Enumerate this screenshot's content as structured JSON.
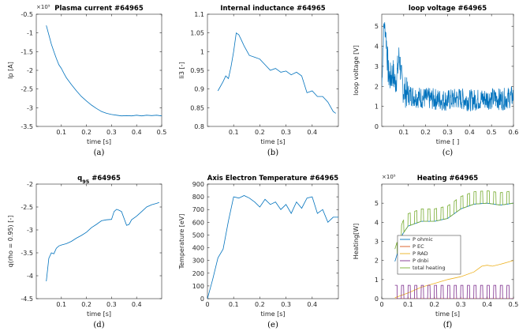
{
  "chart_data": [
    {
      "type": "line",
      "title": "Plasma current #64965",
      "xlabel": "time [s]",
      "ylabel": "Ip [A]",
      "xlim": [
        0,
        0.5
      ],
      "ylim": [
        -3.5,
        -0.5
      ],
      "xticks": [
        0.1,
        0.2,
        0.3,
        0.4,
        0.5
      ],
      "xticklabels": [
        "0.1",
        "0.2",
        "0.3",
        "0.4",
        "0.5"
      ],
      "yticks": [
        -3.5,
        -3,
        -2.5,
        -2,
        -1.5,
        -1,
        -0.5
      ],
      "yticklabels": [
        "-3.5",
        "-3",
        "-2.5",
        "-2",
        "-1.5",
        "-1",
        "-0.5"
      ],
      "exponent": "×10⁵",
      "caption": "(a)",
      "series": [
        {
          "color": "#0072bd",
          "x": [
            0.04,
            0.05,
            0.06,
            0.07,
            0.08,
            0.09,
            0.1,
            0.11,
            0.12,
            0.14,
            0.16,
            0.18,
            0.2,
            0.22,
            0.24,
            0.26,
            0.28,
            0.3,
            0.32,
            0.34,
            0.36,
            0.38,
            0.4,
            0.42,
            0.44,
            0.46,
            0.48,
            0.5
          ],
          "y": [
            -0.8,
            -1.05,
            -1.3,
            -1.5,
            -1.68,
            -1.85,
            -1.95,
            -2.08,
            -2.2,
            -2.38,
            -2.55,
            -2.7,
            -2.82,
            -2.93,
            -3.02,
            -3.1,
            -3.15,
            -3.18,
            -3.2,
            -3.22,
            -3.21,
            -3.22,
            -3.2,
            -3.22,
            -3.2,
            -3.21,
            -3.2,
            -3.22
          ]
        }
      ]
    },
    {
      "type": "line",
      "title": "Internal inductance #64965",
      "xlabel": "time [s]",
      "ylabel": "li3 [-]",
      "xlim": [
        0,
        0.5
      ],
      "ylim": [
        0.8,
        1.1
      ],
      "xticks": [
        0.1,
        0.2,
        0.3,
        0.4
      ],
      "xticklabels": [
        "0.1",
        "0.2",
        "0.3",
        "0.4"
      ],
      "yticks": [
        0.8,
        0.85,
        0.9,
        0.95,
        1,
        1.05,
        1.1
      ],
      "yticklabels": [
        "0.8",
        "0.85",
        "0.9",
        "0.95",
        "1",
        "1.05",
        "1.1"
      ],
      "caption": "(b)",
      "series": [
        {
          "color": "#0072bd",
          "x": [
            0.04,
            0.06,
            0.07,
            0.08,
            0.09,
            0.1,
            0.11,
            0.12,
            0.13,
            0.14,
            0.16,
            0.18,
            0.2,
            0.22,
            0.24,
            0.26,
            0.28,
            0.3,
            0.32,
            0.34,
            0.36,
            0.38,
            0.4,
            0.42,
            0.44,
            0.46,
            0.48,
            0.49
          ],
          "y": [
            0.895,
            0.92,
            0.935,
            0.928,
            0.96,
            1.0,
            1.05,
            1.045,
            1.03,
            1.015,
            0.99,
            0.985,
            0.98,
            0.965,
            0.95,
            0.955,
            0.945,
            0.948,
            0.938,
            0.945,
            0.935,
            0.89,
            0.895,
            0.88,
            0.88,
            0.865,
            0.84,
            0.835
          ]
        }
      ]
    },
    {
      "type": "line",
      "title": "loop voltage #64965",
      "xlabel": "time [ ]",
      "ylabel": "loop voltage [V]",
      "xlim": [
        0,
        0.6
      ],
      "ylim": [
        0,
        5.6
      ],
      "xticks": [
        0.1,
        0.2,
        0.3,
        0.4,
        0.5,
        0.6
      ],
      "xticklabels": [
        "0.1",
        "0.2",
        "0.3",
        "0.4",
        "0.5",
        "0.6"
      ],
      "yticks": [
        0,
        1,
        2,
        3,
        4,
        5
      ],
      "yticklabels": [
        "0",
        "1",
        "2",
        "3",
        "4",
        "5"
      ],
      "caption": "(c)",
      "series": [
        {
          "color": "#0072bd",
          "x": [
            0.0,
            0.01,
            0.02,
            0.03,
            0.04,
            0.05,
            0.06,
            0.07,
            0.08,
            0.09,
            0.1,
            0.12,
            0.15,
            0.2,
            0.25,
            0.3,
            0.35,
            0.4,
            0.45,
            0.5,
            0.55,
            0.6
          ],
          "y": [
            2.0,
            5.2,
            4.5,
            2.6,
            2.4,
            2.7,
            2.2,
            2.6,
            3.6,
            2.3,
            1.8,
            1.6,
            1.5,
            1.4,
            1.35,
            1.3,
            1.4,
            1.3,
            1.35,
            1.4,
            1.35,
            1.5
          ]
        }
      ]
    },
    {
      "type": "line",
      "title": "q95 #64965",
      "xlabel": "time [s]",
      "ylabel": "q(rho = 0.95) [-]",
      "xlim": [
        0,
        0.5
      ],
      "ylim": [
        -4.5,
        -2
      ],
      "xticks": [
        0.1,
        0.2,
        0.3,
        0.4
      ],
      "xticklabels": [
        "0.1",
        "0.2",
        "0.3",
        "0.4"
      ],
      "yticks": [
        -4.5,
        -4,
        -3.5,
        -3,
        -2.5,
        -2
      ],
      "yticklabels": [
        "-4.5",
        "-4",
        "-3.5",
        "-3",
        "-2.5",
        "-2"
      ],
      "caption": "(d)",
      "series": [
        {
          "color": "#0072bd",
          "x": [
            0.04,
            0.05,
            0.06,
            0.07,
            0.08,
            0.09,
            0.1,
            0.12,
            0.14,
            0.16,
            0.18,
            0.2,
            0.22,
            0.24,
            0.26,
            0.28,
            0.3,
            0.31,
            0.32,
            0.33,
            0.34,
            0.35,
            0.36,
            0.37,
            0.38,
            0.4,
            0.42,
            0.44,
            0.46,
            0.48,
            0.49
          ],
          "y": [
            -4.12,
            -3.62,
            -3.5,
            -3.52,
            -3.4,
            -3.35,
            -3.33,
            -3.3,
            -3.25,
            -3.18,
            -3.12,
            -3.05,
            -2.95,
            -2.88,
            -2.8,
            -2.78,
            -2.77,
            -2.6,
            -2.55,
            -2.57,
            -2.6,
            -2.75,
            -2.9,
            -2.88,
            -2.78,
            -2.7,
            -2.6,
            -2.5,
            -2.45,
            -2.42,
            -2.4
          ]
        }
      ]
    },
    {
      "type": "line",
      "title": "Axis Electron Temperature #64965",
      "xlabel": "time [s]",
      "ylabel": "Temperature [eV]",
      "xlim": [
        0,
        0.5
      ],
      "ylim": [
        0,
        900
      ],
      "xticks": [
        0,
        0.1,
        0.2,
        0.3,
        0.4
      ],
      "xticklabels": [
        "0",
        "0.1",
        "0.2",
        "0.3",
        "0.4"
      ],
      "yticks": [
        0,
        100,
        200,
        300,
        400,
        500,
        600,
        700,
        800,
        900
      ],
      "yticklabels": [
        "0",
        "100",
        "200",
        "300",
        "400",
        "500",
        "600",
        "700",
        "800",
        "900"
      ],
      "caption": "(e)",
      "series": [
        {
          "color": "#0072bd",
          "x": [
            0.0,
            0.02,
            0.04,
            0.06,
            0.08,
            0.1,
            0.12,
            0.14,
            0.16,
            0.18,
            0.2,
            0.22,
            0.24,
            0.26,
            0.28,
            0.3,
            0.32,
            0.34,
            0.36,
            0.38,
            0.4,
            0.42,
            0.44,
            0.46,
            0.48,
            0.5
          ],
          "y": [
            0,
            150,
            320,
            390,
            610,
            800,
            790,
            810,
            790,
            760,
            720,
            780,
            740,
            760,
            700,
            740,
            670,
            760,
            710,
            790,
            800,
            670,
            700,
            600,
            640,
            640
          ]
        }
      ]
    },
    {
      "type": "line",
      "title": "Heating #64965",
      "xlabel": "time [s]",
      "ylabel": "Heating[W]",
      "xlim": [
        0,
        0.5
      ],
      "ylim": [
        0,
        6
      ],
      "xticks": [
        0,
        0.1,
        0.2,
        0.3,
        0.4,
        0.5
      ],
      "xticklabels": [
        "0",
        "0.1",
        "0.2",
        "0.3",
        "0.4",
        "0.5"
      ],
      "yticks": [
        0,
        1,
        2,
        3,
        4,
        5
      ],
      "yticklabels": [
        "0",
        "1",
        "2",
        "3",
        "4",
        "5"
      ],
      "exponent": "×10⁵",
      "caption": "(f)",
      "legend": "center",
      "series": [
        {
          "name": "P ohmic",
          "color": "#0072bd",
          "x": [
            0.05,
            0.06,
            0.07,
            0.08,
            0.1,
            0.15,
            0.2,
            0.25,
            0.3,
            0.35,
            0.4,
            0.45,
            0.5
          ],
          "y": [
            1.95,
            2.4,
            3.0,
            3.4,
            3.8,
            4.05,
            4.05,
            4.2,
            4.7,
            4.95,
            5.0,
            4.9,
            5.0
          ]
        },
        {
          "name": "P EC",
          "color": "#d95319",
          "x": [
            0.05,
            0.5
          ],
          "y": [
            0,
            0
          ]
        },
        {
          "name": "P RAD",
          "color": "#edb120",
          "x": [
            0.05,
            0.1,
            0.15,
            0.2,
            0.25,
            0.3,
            0.35,
            0.38,
            0.4,
            0.42,
            0.45,
            0.5
          ],
          "y": [
            0.05,
            0.3,
            0.6,
            0.8,
            1.0,
            1.15,
            1.4,
            1.7,
            1.75,
            1.7,
            1.8,
            2.0
          ]
        },
        {
          "name": "P dnbi",
          "color": "#7e2f8e",
          "x": [
            0.05,
            0.5
          ],
          "y": [
            0.7,
            0.7
          ]
        },
        {
          "name": "total heating",
          "color": "#77ac30",
          "x": [
            0.05,
            0.06,
            0.07,
            0.08,
            0.1,
            0.15,
            0.2,
            0.25,
            0.3,
            0.35,
            0.4,
            0.45,
            0.5
          ],
          "y": [
            1.95,
            2.4,
            3.0,
            3.4,
            3.8,
            4.05,
            4.05,
            4.2,
            4.7,
            4.95,
            5.0,
            4.9,
            5.0
          ]
        }
      ]
    }
  ]
}
